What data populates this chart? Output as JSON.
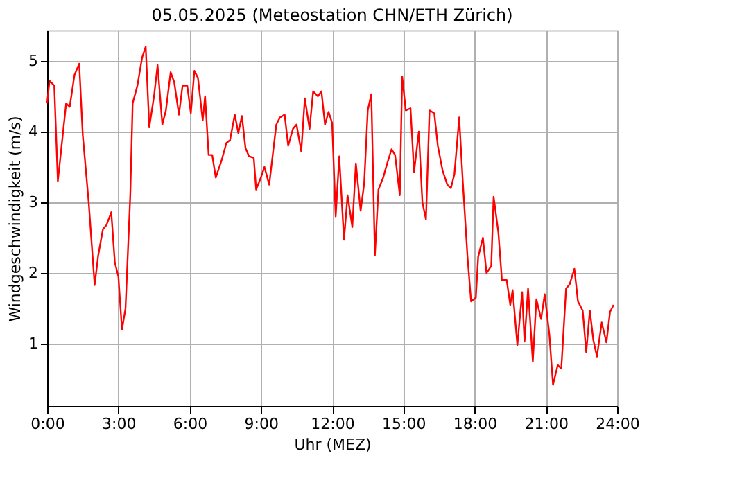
{
  "chart_data": {
    "type": "line",
    "title": "05.05.2025  (Meteostation CHN/ETH Zürich)",
    "xlabel": "Uhr (MEZ)",
    "ylabel": "Windgeschwindigkeit (m/s)",
    "x": [
      0.0,
      0.1,
      0.3,
      0.45,
      0.8,
      0.95,
      1.15,
      1.35,
      1.5,
      1.75,
      2.0,
      2.15,
      2.35,
      2.5,
      2.7,
      2.85,
      3.0,
      3.15,
      3.3,
      3.5,
      3.6,
      3.8,
      4.0,
      4.15,
      4.3,
      4.5,
      4.65,
      4.85,
      5.0,
      5.2,
      5.35,
      5.55,
      5.7,
      5.9,
      6.05,
      6.2,
      6.35,
      6.55,
      6.65,
      6.8,
      6.95,
      7.1,
      7.35,
      7.55,
      7.7,
      7.9,
      8.05,
      8.2,
      8.35,
      8.5,
      8.7,
      8.8,
      9.0,
      9.15,
      9.35,
      9.65,
      9.8,
      10.0,
      10.15,
      10.35,
      10.5,
      10.7,
      10.85,
      11.05,
      11.2,
      11.4,
      11.55,
      11.7,
      11.85,
      12.0,
      12.15,
      12.3,
      12.5,
      12.65,
      12.85,
      13.0,
      13.2,
      13.35,
      13.5,
      13.65,
      13.8,
      13.95,
      14.15,
      14.3,
      14.5,
      14.65,
      14.85,
      14.95,
      15.1,
      15.3,
      15.45,
      15.65,
      15.8,
      15.95,
      16.1,
      16.3,
      16.45,
      16.65,
      16.85,
      17.0,
      17.15,
      17.35,
      17.5,
      17.7,
      17.85,
      18.05,
      18.15,
      18.35,
      18.5,
      18.7,
      18.8,
      19.0,
      19.15,
      19.35,
      19.5,
      19.6,
      19.8,
      20.0,
      20.1,
      20.25,
      20.45,
      20.6,
      20.8,
      20.95,
      21.15,
      21.3,
      21.5,
      21.65,
      21.85,
      22.0,
      22.2,
      22.35,
      22.55,
      22.7,
      22.85,
      23.0,
      23.15,
      23.35,
      23.55,
      23.7,
      23.85
    ],
    "series": [
      {
        "color": "#ff0000",
        "values": [
          4.4,
          4.72,
          4.65,
          3.3,
          4.4,
          4.35,
          4.8,
          4.96,
          3.95,
          3.0,
          1.83,
          2.25,
          2.62,
          2.68,
          2.86,
          2.15,
          1.95,
          1.2,
          1.5,
          3.1,
          4.4,
          4.65,
          5.05,
          5.2,
          4.06,
          4.5,
          4.94,
          4.1,
          4.3,
          4.84,
          4.7,
          4.24,
          4.65,
          4.65,
          4.26,
          4.86,
          4.76,
          4.16,
          4.5,
          3.67,
          3.67,
          3.35,
          3.6,
          3.84,
          3.88,
          4.24,
          3.98,
          4.22,
          3.77,
          3.65,
          3.63,
          3.18,
          3.35,
          3.5,
          3.25,
          4.1,
          4.2,
          4.24,
          3.8,
          4.04,
          4.1,
          3.72,
          4.47,
          4.04,
          4.57,
          4.5,
          4.57,
          4.1,
          4.28,
          4.12,
          2.8,
          3.65,
          2.47,
          3.1,
          2.65,
          3.55,
          2.88,
          3.27,
          4.3,
          4.53,
          2.25,
          3.18,
          3.35,
          3.53,
          3.75,
          3.67,
          3.1,
          4.78,
          4.3,
          4.33,
          3.43,
          4.0,
          3.0,
          2.76,
          4.3,
          4.26,
          3.8,
          3.45,
          3.25,
          3.2,
          3.4,
          4.2,
          3.3,
          2.23,
          1.6,
          1.65,
          2.23,
          2.5,
          2.0,
          2.1,
          3.08,
          2.57,
          1.9,
          1.9,
          1.55,
          1.76,
          0.98,
          1.73,
          1.03,
          1.78,
          0.75,
          1.63,
          1.35,
          1.7,
          1.12,
          0.42,
          0.7,
          0.65,
          1.78,
          1.84,
          2.06,
          1.6,
          1.47,
          0.88,
          1.47,
          1.05,
          0.82,
          1.3,
          1.02,
          1.45,
          1.55
        ]
      }
    ],
    "xlim": [
      0,
      24
    ],
    "xticks": [
      {
        "value": 0,
        "label": "0:00"
      },
      {
        "value": 3,
        "label": "3:00"
      },
      {
        "value": 6,
        "label": "6:00"
      },
      {
        "value": 9,
        "label": "9:00"
      },
      {
        "value": 12,
        "label": "12:00"
      },
      {
        "value": 15,
        "label": "15:00"
      },
      {
        "value": 18,
        "label": "18:00"
      },
      {
        "value": 21,
        "label": "21:00"
      },
      {
        "value": 24,
        "label": "24:00"
      }
    ],
    "ylim": [
      0.12,
      5.43
    ],
    "yticks": [
      1,
      2,
      3,
      4,
      5
    ],
    "grid": true,
    "line_style": "solid"
  }
}
